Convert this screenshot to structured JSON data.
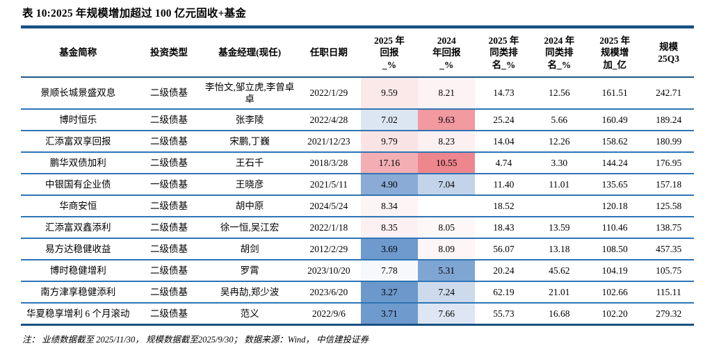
{
  "title": "表 10:2025 年规模增加超过 100 亿元固收+基金",
  "note": "注： 业绩数据截至 2025/11/30， 规模数据截至2025/9/30； 数据来源：Wind， 中信建投证券",
  "colors": {
    "rule_navy": "#174f81",
    "row_separator_blue": "#2e74b5",
    "heat_red_strong": "#ee868d",
    "heat_blue_strong": "#6c98cc"
  },
  "table": {
    "headers": [
      "基金简称",
      "投资类型",
      "基金经理(现任)",
      "任职日期",
      "2025 年\n回报\n_%",
      "2024\n年回报\n_%",
      "2025 年\n同类排\n名_%",
      "2024 年\n同类排\n名_%",
      "2025 年\n规模增\n加_亿",
      "规模\n25Q3"
    ],
    "rows": [
      {
        "name": "景顺长城景盛双息",
        "type": "二级债基",
        "manager": "李怡文,邹立虎,李曾卓卓",
        "date": "2022/1/29",
        "ret2025": "9.59",
        "ret2024": "8.21",
        "rank2025": "14.73",
        "rank2024": "12.56",
        "scale_inc": "161.51",
        "scale_q3": "242.71",
        "bg2025": "#fbe9ea",
        "bg2024": "#fdf2f4"
      },
      {
        "name": "博时恒乐",
        "type": "二级债基",
        "manager": "张李陵",
        "date": "2022/4/28",
        "ret2025": "7.02",
        "ret2024": "9.63",
        "rank2025": "25.24",
        "rank2024": "5.66",
        "scale_inc": "160.49",
        "scale_q3": "189.24",
        "bg2025": "#dce6f2",
        "bg2024": "#f399a0"
      },
      {
        "name": "汇添富双享回报",
        "type": "二级债基",
        "manager": "宋鹏,丁巍",
        "date": "2021/12/23",
        "ret2025": "9.79",
        "ret2024": "8.23",
        "rank2025": "14.04",
        "rank2024": "12.26",
        "scale_inc": "158.62",
        "scale_q3": "180.99",
        "bg2025": "#fae3e5",
        "bg2024": "#fdf0f1"
      },
      {
        "name": "鹏华双债加利",
        "type": "二级债基",
        "manager": "王石千",
        "date": "2018/3/28",
        "ret2025": "17.16",
        "ret2024": "10.55",
        "rank2025": "4.74",
        "rank2024": "3.30",
        "scale_inc": "144.24",
        "scale_q3": "176.95",
        "bg2025": "#f2aeb3",
        "bg2024": "#ee868d"
      },
      {
        "name": "中银国有企业债",
        "type": "一级债基",
        "manager": "王晓彦",
        "date": "2021/5/11",
        "ret2025": "4.90",
        "ret2024": "7.04",
        "rank2025": "11.40",
        "rank2024": "11.01",
        "scale_inc": "135.65",
        "scale_q3": "157.18",
        "bg2025": "#8aabd5",
        "bg2024": "#c3d3e9"
      },
      {
        "name": "华商安恒",
        "type": "二级债基",
        "manager": "胡中原",
        "date": "2024/5/24",
        "ret2025": "8.34",
        "ret2024": "",
        "rank2025": "18.52",
        "rank2024": "",
        "scale_inc": "120.18",
        "scale_q3": "125.58",
        "bg2025": "#fdf4f5",
        "bg2024": ""
      },
      {
        "name": "汇添富双鑫添利",
        "type": "二级债基",
        "manager": "徐一恒,吴江宏",
        "date": "2022/1/18",
        "ret2025": "8.35",
        "ret2024": "8.05",
        "rank2025": "18.43",
        "rank2024": "13.59",
        "scale_inc": "110.46",
        "scale_q3": "138.75",
        "bg2025": "#fcf0f2",
        "bg2024": "#fef7f7"
      },
      {
        "name": "易方达稳健收益",
        "type": "二级债基",
        "manager": "胡剑",
        "date": "2012/2/29",
        "ret2025": "3.69",
        "ret2024": "8.09",
        "rank2025": "56.07",
        "rank2024": "13.18",
        "scale_inc": "108.50",
        "scale_q3": "457.35",
        "bg2025": "#6e9ace",
        "bg2024": "#fdf5f6"
      },
      {
        "name": "博时稳健增利",
        "type": "二级债基",
        "manager": "罗霄",
        "date": "2023/10/20",
        "ret2025": "7.78",
        "ret2024": "5.31",
        "rank2025": "20.24",
        "rank2024": "45.62",
        "scale_inc": "104.19",
        "scale_q3": "105.75",
        "bg2025": "#f6f8fb",
        "bg2024": "#7fa5d2"
      },
      {
        "name": "南方津享稳健添利",
        "type": "二级债基",
        "manager": "吴冉劼,郑少波",
        "date": "2023/6/20",
        "ret2025": "3.27",
        "ret2024": "7.24",
        "rank2025": "62.19",
        "rank2024": "21.01",
        "scale_inc": "102.66",
        "scale_q3": "115.11",
        "bg2025": "#6c98cc",
        "bg2024": "#ccdaec"
      },
      {
        "name": "华夏稳享增利 6 个月滚动",
        "type": "二级债基",
        "manager": "范义",
        "date": "2022/9/6",
        "ret2025": "3.71",
        "ret2024": "7.66",
        "rank2025": "55.73",
        "rank2024": "16.68",
        "scale_inc": "102.20",
        "scale_q3": "279.32",
        "bg2025": "#6f9acd",
        "bg2024": "#dde6f2"
      }
    ]
  }
}
